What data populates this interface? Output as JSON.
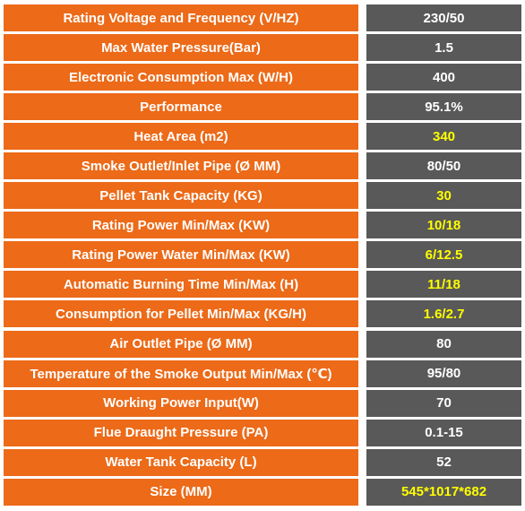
{
  "colors": {
    "label_background": "#ec6a18",
    "value_background": "#595959",
    "label_text": "#ffffff",
    "value_text": "#ffffff",
    "highlight_text": "#ffff00"
  },
  "specs": [
    {
      "label": "Rating Voltage and Frequency (V/HZ)",
      "value": "230/50",
      "highlight": false
    },
    {
      "label": "Max Water Pressure(Bar)",
      "value": "1.5",
      "highlight": false
    },
    {
      "label": "Electronic Consumption Max (W/H)",
      "value": "400",
      "highlight": false
    },
    {
      "label": "Performance",
      "value": "95.1%",
      "highlight": false
    },
    {
      "label": "Heat Area  (m2)",
      "value": "340",
      "highlight": true
    },
    {
      "label": "Smoke Outlet/Inlet  Pipe (Ø MM)",
      "value": "80/50",
      "highlight": false
    },
    {
      "label": "Pellet Tank Capacity (KG)",
      "value": "30",
      "highlight": true
    },
    {
      "label": "Rating Power Min/Max (KW)",
      "value": "10/18",
      "highlight": true
    },
    {
      "label": "Rating Power Water Min/Max (KW)",
      "value": "6/12.5",
      "highlight": true
    },
    {
      "label": "Automatic Burning Time Min/Max (H)",
      "value": "11/18",
      "highlight": true
    },
    {
      "label": "Consumption for Pellet Min/Max (KG/H)",
      "value": "1.6/2.7",
      "highlight": true
    },
    {
      "label": "Air Outlet Pipe (Ø MM)",
      "value": "80",
      "highlight": false
    },
    {
      "label": "Temperature of the Smoke Output  Min/Max (℃)",
      "value": "95/80",
      "highlight": false
    },
    {
      "label": "Working Power Input(W)",
      "value": "70",
      "highlight": false
    },
    {
      "label": "Flue  Draught Pressure (PA)",
      "value": "0.1-15",
      "highlight": false
    },
    {
      "label": "Water Tank Capacity (L)",
      "value": "52",
      "highlight": false
    },
    {
      "label": "Size (MM)",
      "value": "545*1017*682",
      "highlight": true
    }
  ]
}
